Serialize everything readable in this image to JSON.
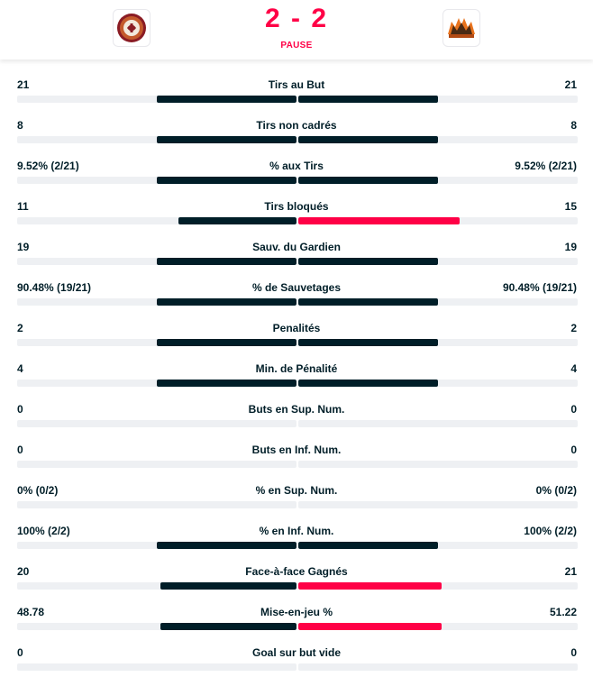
{
  "match": {
    "score": "2 - 2",
    "status": "PAUSE",
    "home_logo": "geneve-servette-logo",
    "away_logo": "sc-bern-logo"
  },
  "colors": {
    "accent": "#ff0046",
    "dark": "#001e28",
    "track": "#eef0f3"
  },
  "stats": [
    {
      "label": "Tirs au But",
      "home": "21",
      "away": "21",
      "home_share": 0.5,
      "away_share": 0.5,
      "leader": "none"
    },
    {
      "label": "Tirs non cadrés",
      "home": "8",
      "away": "8",
      "home_share": 0.5,
      "away_share": 0.5,
      "leader": "none"
    },
    {
      "label": "% aux Tirs",
      "home": "9.52% (2/21)",
      "away": "9.52% (2/21)",
      "home_share": 0.5,
      "away_share": 0.5,
      "leader": "none"
    },
    {
      "label": "Tirs bloqués",
      "home": "11",
      "away": "15",
      "home_share": 0.423,
      "away_share": 0.577,
      "leader": "away"
    },
    {
      "label": "Sauv. du Gardien",
      "home": "19",
      "away": "19",
      "home_share": 0.5,
      "away_share": 0.5,
      "leader": "none"
    },
    {
      "label": "% de Sauvetages",
      "home": "90.48% (19/21)",
      "away": "90.48% (19/21)",
      "home_share": 0.5,
      "away_share": 0.5,
      "leader": "none"
    },
    {
      "label": "Penalités",
      "home": "2",
      "away": "2",
      "home_share": 0.5,
      "away_share": 0.5,
      "leader": "none"
    },
    {
      "label": "Min. de Pénalité",
      "home": "4",
      "away": "4",
      "home_share": 0.5,
      "away_share": 0.5,
      "leader": "none"
    },
    {
      "label": "Buts en Sup. Num.",
      "home": "0",
      "away": "0",
      "home_share": 0,
      "away_share": 0,
      "leader": "none"
    },
    {
      "label": "Buts en Inf. Num.",
      "home": "0",
      "away": "0",
      "home_share": 0,
      "away_share": 0,
      "leader": "none"
    },
    {
      "label": "% en Sup. Num.",
      "home": "0% (0/2)",
      "away": "0% (0/2)",
      "home_share": 0,
      "away_share": 0,
      "leader": "none"
    },
    {
      "label": "% en Inf. Num.",
      "home": "100% (2/2)",
      "away": "100% (2/2)",
      "home_share": 0.5,
      "away_share": 0.5,
      "leader": "none"
    },
    {
      "label": "Face-à-face Gagnés",
      "home": "20",
      "away": "21",
      "home_share": 0.4878,
      "away_share": 0.5122,
      "leader": "away"
    },
    {
      "label": "Mise-en-jeu %",
      "home": "48.78",
      "away": "51.22",
      "home_share": 0.4878,
      "away_share": 0.5122,
      "leader": "away"
    },
    {
      "label": "Goal sur but vide",
      "home": "0",
      "away": "0",
      "home_share": 0,
      "away_share": 0,
      "leader": "none"
    }
  ]
}
